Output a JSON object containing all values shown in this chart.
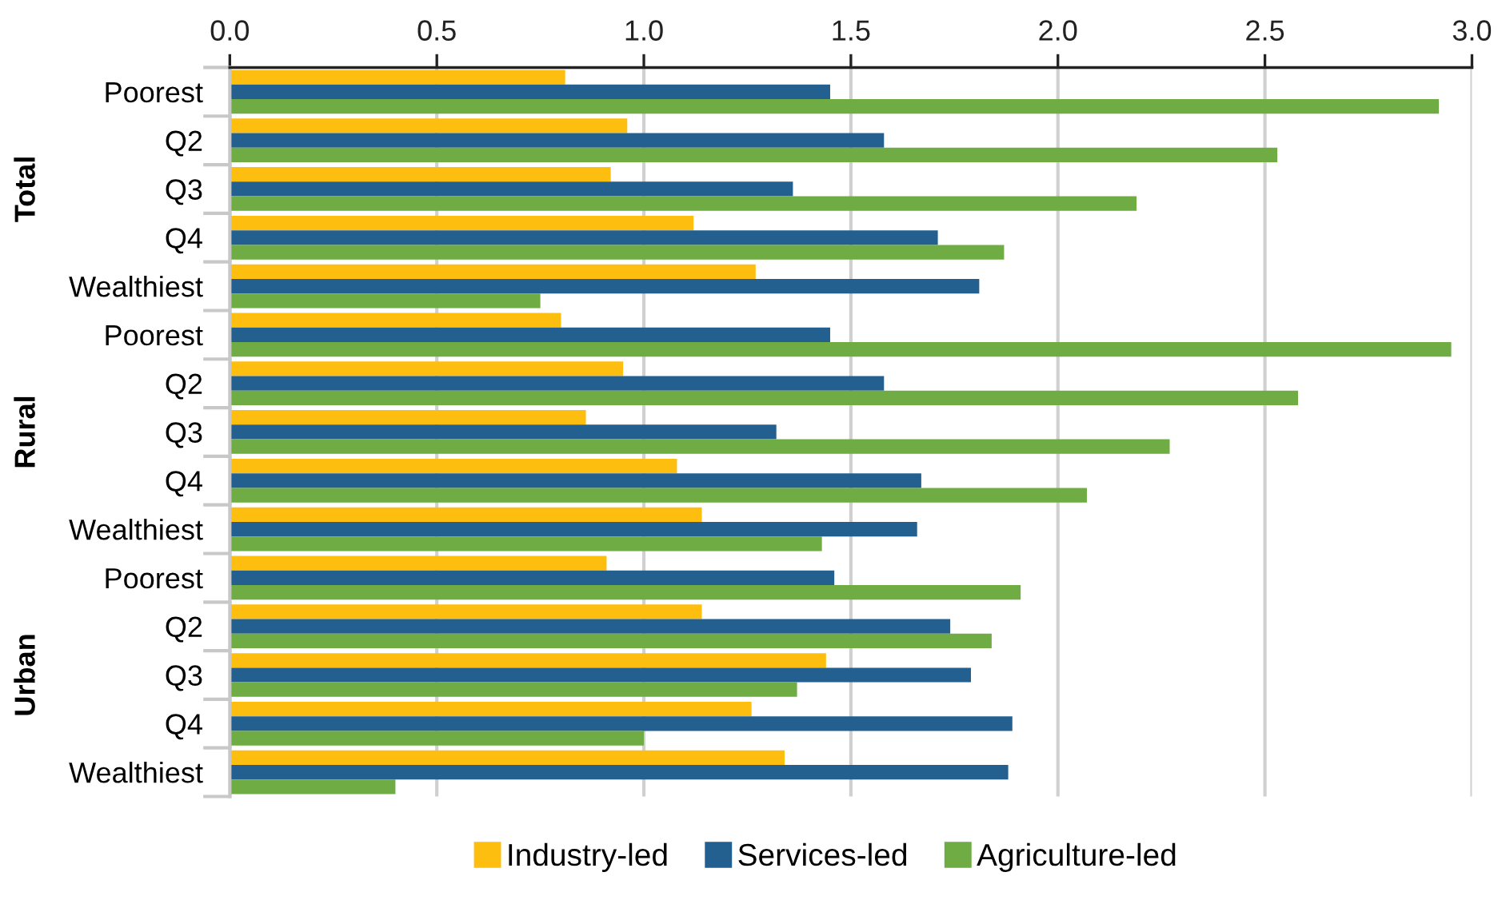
{
  "chart_data": {
    "type": "bar",
    "orientation": "horizontal",
    "categories": [
      "Poorest",
      "Q2",
      "Q3",
      "Q4",
      "Wealthiest",
      "Poorest",
      "Q2",
      "Q3",
      "Q4",
      "Wealthiest",
      "Poorest",
      "Q2",
      "Q3",
      "Q4",
      "Wealthiest"
    ],
    "series": [
      {
        "name": "Industry-led",
        "color": "#fdbe10",
        "values": [
          0.81,
          0.96,
          0.92,
          1.12,
          1.27,
          0.8,
          0.95,
          0.86,
          1.08,
          1.14,
          0.91,
          1.14,
          1.44,
          1.26,
          1.34
        ]
      },
      {
        "name": "Services-led",
        "color": "#23608f",
        "values": [
          1.45,
          1.58,
          1.36,
          1.71,
          1.81,
          1.45,
          1.58,
          1.32,
          1.67,
          1.66,
          1.46,
          1.74,
          1.79,
          1.89,
          1.88
        ]
      },
      {
        "name": "Agriculture-led",
        "color": "#6fac43",
        "values": [
          2.92,
          2.53,
          2.19,
          1.87,
          0.75,
          2.95,
          2.58,
          2.27,
          2.07,
          1.43,
          1.91,
          1.84,
          1.37,
          1.0,
          0.4
        ]
      }
    ],
    "annotations": [
      "Total",
      "Rural",
      "Urban"
    ],
    "xlim": [
      0,
      3.0
    ],
    "xticks": [
      {
        "value": 0,
        "label": "0.0"
      },
      {
        "value": 0.5,
        "label": "0.5"
      },
      {
        "value": 1.0,
        "label": "1.0"
      },
      {
        "value": 1.5,
        "label": "1.5"
      },
      {
        "value": 2.0,
        "label": "2.0"
      },
      {
        "value": 2.5,
        "label": "2.5"
      },
      {
        "value": 3.0,
        "label": "3.0"
      }
    ],
    "grid": "x",
    "legend": "bottom"
  }
}
